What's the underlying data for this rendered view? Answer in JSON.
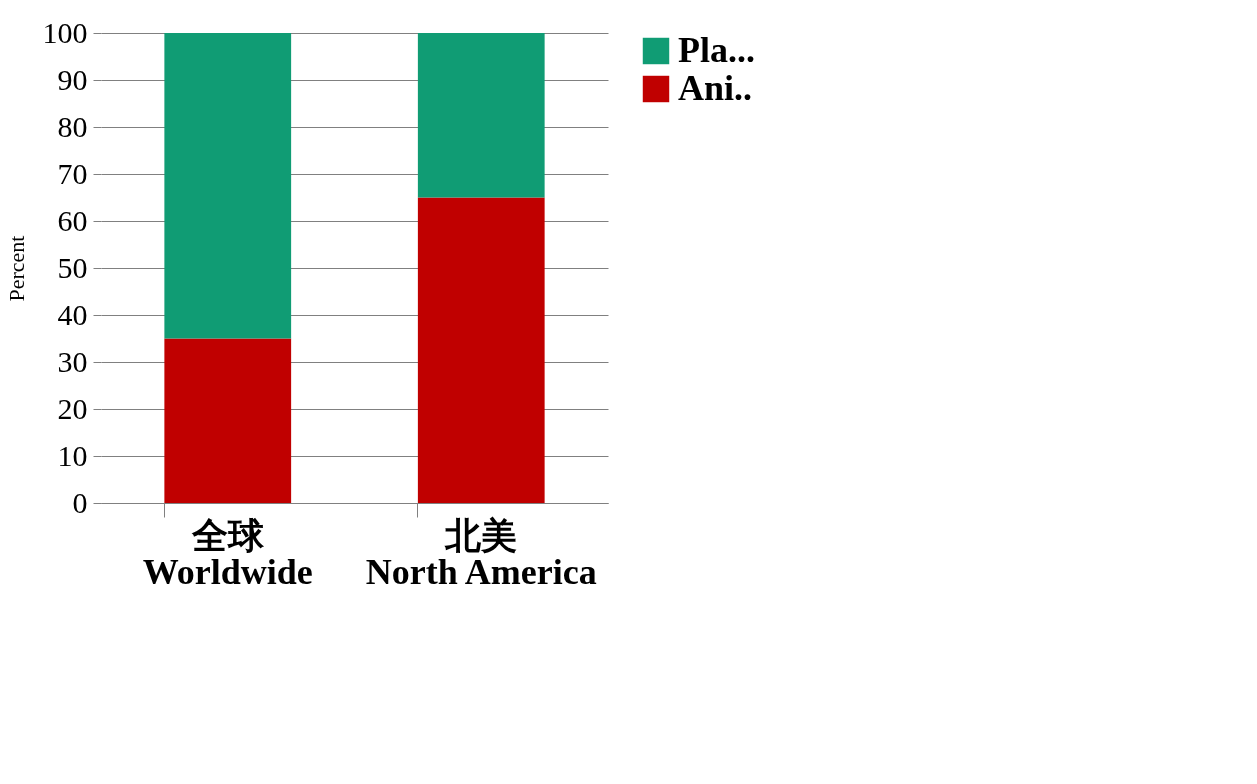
{
  "chart_data": {
    "type": "bar",
    "stacked": true,
    "ylabel": "Percent",
    "categories": [
      "全球\nWorldwide",
      "北美\nNorth America"
    ],
    "series": [
      {
        "name": "Ani..",
        "color": "#c00000",
        "values": [
          35,
          65
        ]
      },
      {
        "name": "Pla...",
        "color": "#109c74",
        "values": [
          65,
          35
        ]
      }
    ],
    "ylim": [
      0,
      100
    ],
    "yticks": [
      0,
      10,
      20,
      30,
      40,
      50,
      60,
      70,
      80,
      90,
      100
    ],
    "grid": "y",
    "legend": "right"
  }
}
